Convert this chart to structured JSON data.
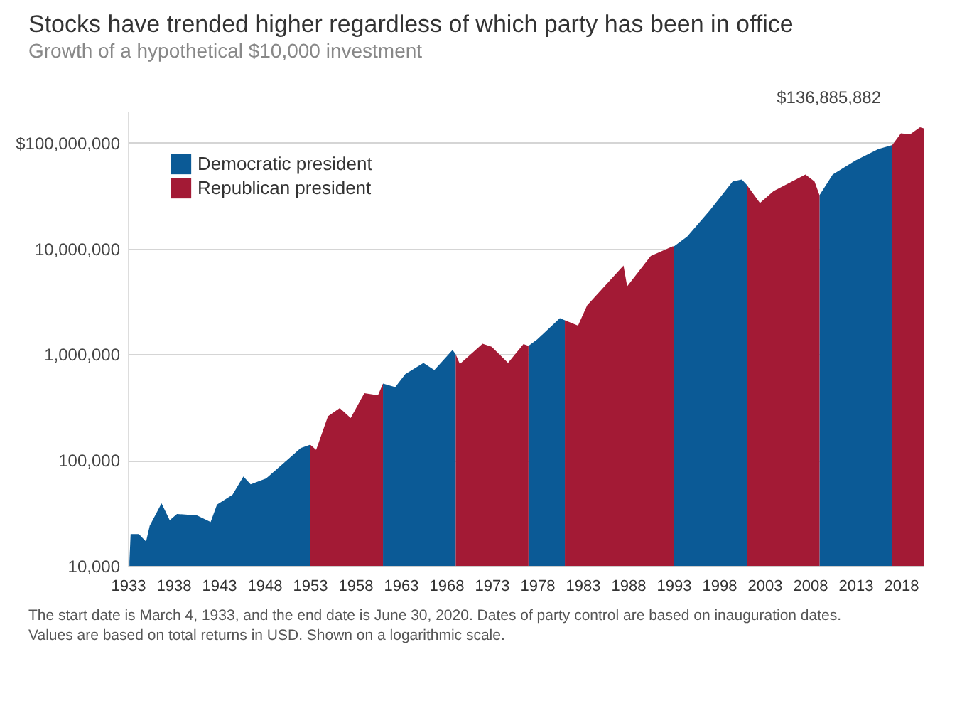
{
  "chart_data": {
    "type": "area",
    "title": "Stocks have trended higher regardless of which party has been in office",
    "subtitle": "Growth of a hypothetical $10,000 investment",
    "x": [
      1933.17,
      1933.3,
      1934.2,
      1935.0,
      1935.4,
      1936.7,
      1937.6,
      1938.4,
      1940.6,
      1942.1,
      1942.8,
      1944.5,
      1945.7,
      1946.5,
      1948.2,
      1950.5,
      1952.0,
      1953.05,
      1953.7,
      1955.0,
      1956.3,
      1957.5,
      1959.0,
      1960.5,
      1961.05,
      1962.4,
      1963.5,
      1965.5,
      1966.7,
      1968.7,
      1969.05,
      1969.5,
      1972.0,
      1973.0,
      1974.8,
      1976.5,
      1977.05,
      1978.0,
      1980.5,
      1981.05,
      1982.5,
      1983.5,
      1987.5,
      1987.9,
      1990.5,
      1992.9,
      1993.05,
      1994.5,
      1997.0,
      1999.5,
      2000.5,
      2001.05,
      2002.5,
      2004.0,
      2007.5,
      2008.5,
      2009.05,
      2010.5,
      2013.0,
      2015.5,
      2017.05,
      2018.0,
      2019.0,
      2020.1,
      2020.5
    ],
    "series": [
      {
        "name": "Democratic president",
        "color": "#0b5a96",
        "values": [
          11000,
          20000,
          20000,
          17000,
          24000,
          39000,
          27000,
          31000,
          30000,
          26000,
          38000,
          47000,
          70000,
          59000,
          67000,
          100000,
          130000,
          140000,
          null,
          null,
          null,
          null,
          null,
          null,
          530000,
          490000,
          650000,
          830000,
          710000,
          1100000,
          1000000,
          null,
          null,
          null,
          null,
          null,
          1200000,
          1380000,
          2200000,
          2100000,
          null,
          null,
          null,
          null,
          null,
          null,
          10500000,
          13000000,
          23000000,
          43000000,
          45000000,
          40000000,
          null,
          null,
          null,
          null,
          32000000,
          50000000,
          68000000,
          87000000,
          95000000,
          null,
          null,
          null,
          null
        ]
      },
      {
        "name": "Republican president",
        "color": "#a31a35",
        "values": [
          null,
          null,
          null,
          null,
          null,
          null,
          null,
          null,
          null,
          null,
          null,
          null,
          null,
          null,
          null,
          null,
          null,
          140000,
          125000,
          260000,
          310000,
          250000,
          430000,
          410000,
          530000,
          null,
          null,
          null,
          null,
          null,
          1000000,
          810000,
          1260000,
          1180000,
          830000,
          1250000,
          1200000,
          null,
          null,
          2100000,
          1870000,
          2900000,
          6900000,
          4400000,
          8500000,
          10500000,
          10500000,
          null,
          null,
          null,
          null,
          40000000,
          27000000,
          35000000,
          50000000,
          43000000,
          32000000,
          null,
          null,
          null,
          95000000,
          123000000,
          120000000,
          140000000,
          136885882
        ]
      }
    ],
    "xlim": [
      1933,
      2020.5
    ],
    "xticks": [
      1933,
      1938,
      1943,
      1948,
      1953,
      1958,
      1963,
      1968,
      1973,
      1978,
      1983,
      1988,
      1993,
      1998,
      2003,
      2008,
      2013,
      2018
    ],
    "ylim": [
      10000,
      200000000
    ],
    "log": "y",
    "yticks": [
      {
        "value": 10000,
        "label": "10,000"
      },
      {
        "value": 100000,
        "label": "100,000"
      },
      {
        "value": 1000000,
        "label": "1,000,000"
      },
      {
        "value": 10000000,
        "label": "10,000,000"
      },
      {
        "value": 100000000,
        "label": "$100,000,000"
      }
    ],
    "grid": "y",
    "legend": "top left",
    "annotations": [
      {
        "text": "$136,885,882",
        "x": 2020.5,
        "y": 136885882
      },
      "The start date is March 4, 1933, and the end date is June 30, 2020. Dates of party control are based on inauguration dates. Values are based on total returns in USD. Shown on a logarithmic scale."
    ]
  }
}
